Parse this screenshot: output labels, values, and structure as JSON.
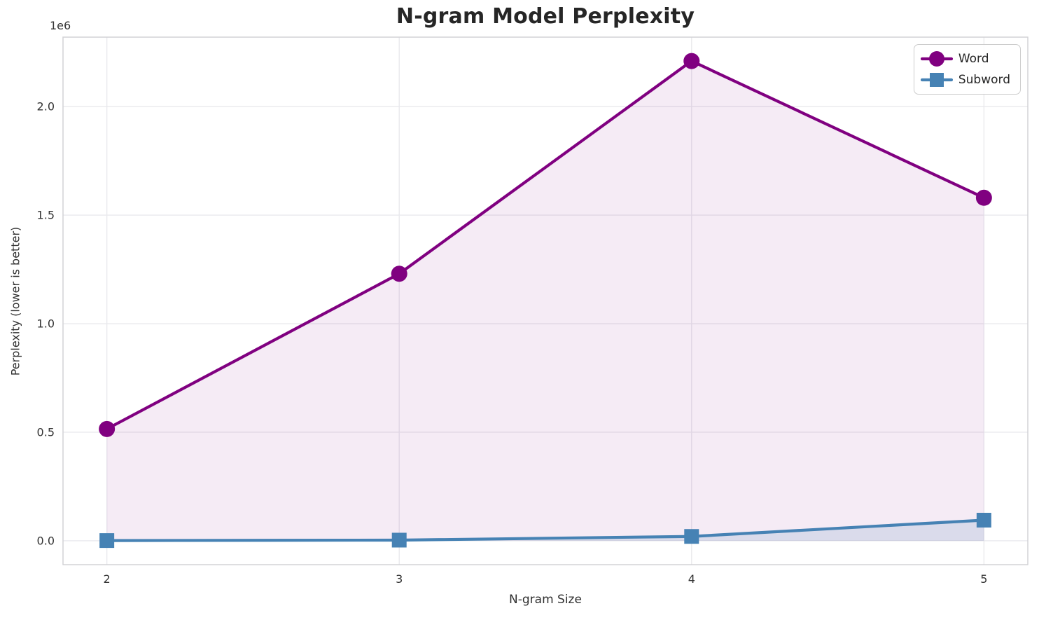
{
  "chart_data": {
    "type": "line",
    "title": "N-gram Model Perplexity",
    "xlabel": "N-gram Size",
    "ylabel": "Perplexity (lower is better)",
    "y_offset_label": "1e6",
    "x": [
      2,
      3,
      4,
      5
    ],
    "x_tick_labels": [
      "2",
      "3",
      "4",
      "5"
    ],
    "y_ticks": [
      0,
      500000,
      1000000,
      1500000,
      2000000
    ],
    "y_tick_labels": [
      "0.0",
      "0.5",
      "1.0",
      "1.5",
      "2.0"
    ],
    "xlim": [
      1.85,
      5.15
    ],
    "ylim": [
      -110000,
      2320000
    ],
    "grid": true,
    "legend_position": "upper right",
    "series": [
      {
        "name": "Word",
        "marker": "circle",
        "color": "#800080",
        "fill_alpha": 0.08,
        "values": [
          515000,
          1230000,
          2210000,
          1580000
        ]
      },
      {
        "name": "Subword",
        "marker": "square",
        "color": "#4682b4",
        "fill_alpha": 0.15,
        "values": [
          1000,
          3000,
          20000,
          95000
        ]
      }
    ],
    "colors": {
      "grid": "#e9e9ed",
      "spine": "#d2d2d6",
      "text": "#333333",
      "background": "#ffffff"
    }
  }
}
